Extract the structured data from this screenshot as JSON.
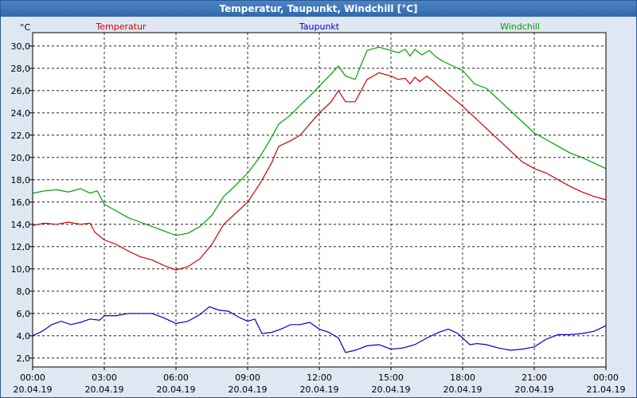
{
  "window": {
    "title": "Temperatur, Taupunkt, Windchill [°C]"
  },
  "colors": {
    "temperature": "#d00000",
    "dewpoint": "#0000c8",
    "windchill": "#00a000",
    "plot_bg": "#ffffff",
    "frame_bg": "#dfe7f2"
  },
  "chart_data": {
    "type": "line",
    "title": "Temperatur, Taupunkt, Windchill [°C]",
    "ylabel": "°C",
    "xlabel": "",
    "ylim": [
      1.2,
      31.2
    ],
    "xlim": [
      0,
      24
    ],
    "grid": true,
    "legend_position": "top",
    "yticks": [
      2,
      4,
      6,
      8,
      10,
      12,
      14,
      16,
      18,
      20,
      22,
      24,
      26,
      28,
      30
    ],
    "ytick_labels": [
      "2,0",
      "4,0",
      "6,0",
      "8,0",
      "10,0",
      "12,0",
      "14,0",
      "16,0",
      "18,0",
      "20,0",
      "22,0",
      "24,0",
      "26,0",
      "28,0",
      "30,0"
    ],
    "xticks": [
      {
        "x": 0,
        "time": "00:00",
        "date": "20.04.19"
      },
      {
        "x": 3,
        "time": "03:00",
        "date": "20.04.19"
      },
      {
        "x": 6,
        "time": "06:00",
        "date": "20.04.19"
      },
      {
        "x": 9,
        "time": "09:00",
        "date": "20.04.19"
      },
      {
        "x": 12,
        "time": "12:00",
        "date": "20.04.19"
      },
      {
        "x": 15,
        "time": "15:00",
        "date": "20.04.19"
      },
      {
        "x": 18,
        "time": "18:00",
        "date": "20.04.19"
      },
      {
        "x": 21,
        "time": "21:00",
        "date": "20.04.19"
      },
      {
        "x": 24,
        "time": "00:00",
        "date": "21.04.19"
      }
    ],
    "series": [
      {
        "name": "Temperatur",
        "color": "#d00000",
        "points": [
          [
            0,
            13.9
          ],
          [
            0.5,
            14.1
          ],
          [
            1,
            14.0
          ],
          [
            1.5,
            14.2
          ],
          [
            2,
            14.0
          ],
          [
            2.4,
            14.1
          ],
          [
            2.6,
            13.3
          ],
          [
            3,
            12.6
          ],
          [
            3.5,
            12.2
          ],
          [
            4,
            11.6
          ],
          [
            4.5,
            11.1
          ],
          [
            5,
            10.8
          ],
          [
            5.5,
            10.3
          ],
          [
            6,
            9.9
          ],
          [
            6.5,
            10.2
          ],
          [
            7,
            10.9
          ],
          [
            7.5,
            12.2
          ],
          [
            8,
            14.0
          ],
          [
            8.5,
            15.0
          ],
          [
            9,
            16.0
          ],
          [
            9.5,
            17.6
          ],
          [
            10,
            19.5
          ],
          [
            10.3,
            21.0
          ],
          [
            10.8,
            21.5
          ],
          [
            11.2,
            22.0
          ],
          [
            11.6,
            23.0
          ],
          [
            12,
            24.0
          ],
          [
            12.5,
            25.0
          ],
          [
            12.8,
            26.0
          ],
          [
            13.1,
            25.0
          ],
          [
            13.5,
            25.0
          ],
          [
            14,
            27.0
          ],
          [
            14.5,
            27.6
          ],
          [
            15,
            27.3
          ],
          [
            15.3,
            27.0
          ],
          [
            15.6,
            27.1
          ],
          [
            15.8,
            26.6
          ],
          [
            16,
            27.2
          ],
          [
            16.2,
            26.8
          ],
          [
            16.5,
            27.3
          ],
          [
            16.8,
            26.8
          ],
          [
            17,
            26.4
          ],
          [
            17.5,
            25.5
          ],
          [
            18,
            24.6
          ],
          [
            18.5,
            23.6
          ],
          [
            19,
            22.6
          ],
          [
            19.5,
            21.6
          ],
          [
            20,
            20.6
          ],
          [
            20.5,
            19.6
          ],
          [
            21,
            19.0
          ],
          [
            21.5,
            18.6
          ],
          [
            22,
            18.0
          ],
          [
            22.5,
            17.4
          ],
          [
            23,
            16.9
          ],
          [
            23.5,
            16.5
          ],
          [
            24,
            16.2
          ]
        ]
      },
      {
        "name": "Taupunkt",
        "color": "#0000c8",
        "points": [
          [
            0,
            4.0
          ],
          [
            0.4,
            4.4
          ],
          [
            0.8,
            5.0
          ],
          [
            1.2,
            5.3
          ],
          [
            1.6,
            5.0
          ],
          [
            2,
            5.2
          ],
          [
            2.4,
            5.5
          ],
          [
            2.8,
            5.4
          ],
          [
            3,
            5.8
          ],
          [
            3.5,
            5.8
          ],
          [
            4,
            6.0
          ],
          [
            4.5,
            6.0
          ],
          [
            5,
            6.0
          ],
          [
            5.5,
            5.6
          ],
          [
            6,
            5.1
          ],
          [
            6.5,
            5.3
          ],
          [
            7,
            5.9
          ],
          [
            7.4,
            6.6
          ],
          [
            7.8,
            6.3
          ],
          [
            8.2,
            6.2
          ],
          [
            8.6,
            5.7
          ],
          [
            9,
            5.3
          ],
          [
            9.3,
            5.5
          ],
          [
            9.6,
            4.2
          ],
          [
            10,
            4.3
          ],
          [
            10.4,
            4.6
          ],
          [
            10.8,
            5.0
          ],
          [
            11.2,
            5.0
          ],
          [
            11.6,
            5.2
          ],
          [
            12,
            4.6
          ],
          [
            12.4,
            4.3
          ],
          [
            12.8,
            3.8
          ],
          [
            13.1,
            2.5
          ],
          [
            13.5,
            2.7
          ],
          [
            14,
            3.1
          ],
          [
            14.5,
            3.2
          ],
          [
            15,
            2.8
          ],
          [
            15.5,
            2.9
          ],
          [
            16,
            3.2
          ],
          [
            16.5,
            3.8
          ],
          [
            17,
            4.3
          ],
          [
            17.4,
            4.6
          ],
          [
            17.8,
            4.2
          ],
          [
            18,
            3.8
          ],
          [
            18.3,
            3.2
          ],
          [
            18.6,
            3.3
          ],
          [
            19,
            3.2
          ],
          [
            19.5,
            2.9
          ],
          [
            20,
            2.7
          ],
          [
            20.5,
            2.8
          ],
          [
            21,
            3.0
          ],
          [
            21.5,
            3.7
          ],
          [
            22,
            4.1
          ],
          [
            22.5,
            4.1
          ],
          [
            23,
            4.2
          ],
          [
            23.5,
            4.4
          ],
          [
            24,
            4.9
          ]
        ]
      },
      {
        "name": "Windchill",
        "color": "#00a000",
        "points": [
          [
            0,
            16.8
          ],
          [
            0.5,
            17.0
          ],
          [
            1,
            17.1
          ],
          [
            1.5,
            16.9
          ],
          [
            2,
            17.2
          ],
          [
            2.4,
            16.8
          ],
          [
            2.7,
            17.0
          ],
          [
            3,
            15.8
          ],
          [
            3.5,
            15.2
          ],
          [
            4,
            14.6
          ],
          [
            4.5,
            14.2
          ],
          [
            5,
            13.8
          ],
          [
            5.5,
            13.4
          ],
          [
            6,
            13.0
          ],
          [
            6.5,
            13.2
          ],
          [
            7,
            13.8
          ],
          [
            7.5,
            14.8
          ],
          [
            8,
            16.5
          ],
          [
            8.5,
            17.5
          ],
          [
            9,
            18.6
          ],
          [
            9.5,
            20.0
          ],
          [
            10,
            21.8
          ],
          [
            10.3,
            23.0
          ],
          [
            10.8,
            23.8
          ],
          [
            11.2,
            24.7
          ],
          [
            11.6,
            25.5
          ],
          [
            12,
            26.4
          ],
          [
            12.5,
            27.5
          ],
          [
            12.8,
            28.2
          ],
          [
            13.1,
            27.3
          ],
          [
            13.5,
            27.0
          ],
          [
            14,
            29.6
          ],
          [
            14.5,
            29.9
          ],
          [
            15,
            29.6
          ],
          [
            15.3,
            29.4
          ],
          [
            15.6,
            29.7
          ],
          [
            15.8,
            29.1
          ],
          [
            16,
            29.7
          ],
          [
            16.3,
            29.2
          ],
          [
            16.6,
            29.6
          ],
          [
            16.9,
            29.0
          ],
          [
            17.2,
            28.6
          ],
          [
            17.6,
            28.2
          ],
          [
            18,
            27.8
          ],
          [
            18.5,
            26.6
          ],
          [
            19,
            26.2
          ],
          [
            19.5,
            25.2
          ],
          [
            20,
            24.2
          ],
          [
            20.5,
            23.2
          ],
          [
            21,
            22.2
          ],
          [
            21.5,
            21.6
          ],
          [
            22,
            21.0
          ],
          [
            22.5,
            20.4
          ],
          [
            23,
            20.0
          ],
          [
            23.5,
            19.5
          ],
          [
            24,
            19.0
          ]
        ]
      }
    ]
  }
}
